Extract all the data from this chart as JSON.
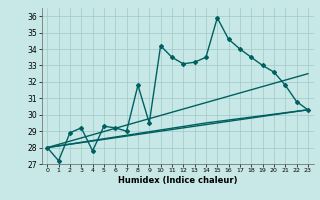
{
  "xlabel": "Humidex (Indice chaleur)",
  "ylabel": "",
  "xlim": [
    -0.5,
    23.5
  ],
  "ylim": [
    27,
    36.5
  ],
  "yticks": [
    27,
    28,
    29,
    30,
    31,
    32,
    33,
    34,
    35,
    36
  ],
  "xticks": [
    0,
    1,
    2,
    3,
    4,
    5,
    6,
    7,
    8,
    9,
    10,
    11,
    12,
    13,
    14,
    15,
    16,
    17,
    18,
    19,
    20,
    21,
    22,
    23
  ],
  "bg_color": "#c8e8e8",
  "grid_color": "#a0c8c8",
  "line_color": "#006060",
  "lines": [
    {
      "x": [
        0,
        1,
        2,
        3,
        4,
        5,
        6,
        7,
        8,
        9,
        10,
        11,
        12,
        13,
        14,
        15,
        16,
        17,
        18,
        19,
        20,
        21,
        22,
        23
      ],
      "y": [
        28.0,
        27.2,
        28.9,
        29.2,
        27.8,
        29.3,
        29.2,
        29.0,
        31.8,
        29.5,
        34.2,
        33.5,
        33.1,
        33.2,
        33.5,
        35.9,
        34.6,
        34.0,
        33.5,
        33.0,
        32.6,
        31.8,
        30.8,
        30.3
      ],
      "marker": "D",
      "markersize": 2.0,
      "linewidth": 1.0
    },
    {
      "x": [
        0,
        23
      ],
      "y": [
        28.0,
        32.5
      ],
      "marker": null,
      "markersize": 0,
      "linewidth": 1.0
    },
    {
      "x": [
        0,
        23
      ],
      "y": [
        28.0,
        30.3
      ],
      "marker": null,
      "markersize": 0,
      "linewidth": 1.0
    },
    {
      "x": [
        0,
        14,
        23
      ],
      "y": [
        28.0,
        29.5,
        30.3
      ],
      "marker": null,
      "markersize": 0,
      "linewidth": 1.0
    }
  ]
}
